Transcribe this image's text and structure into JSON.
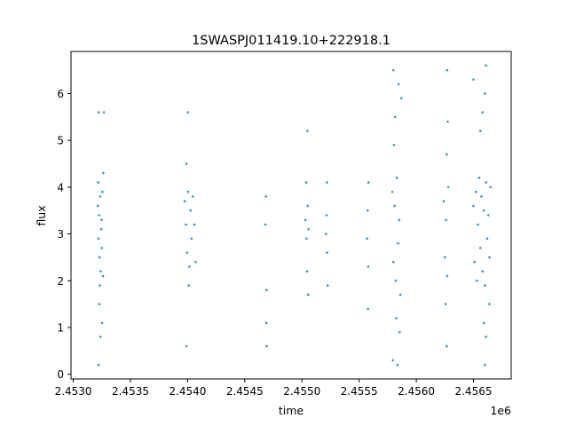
{
  "chart_data": {
    "type": "scatter",
    "title": "1SWASPJ011419.10+222918.1",
    "xlabel": "time",
    "ylabel": "flux",
    "x_offset_label": "1e6",
    "xlim": [
      2452980,
      2456830
    ],
    "ylim": [
      -0.1,
      6.9
    ],
    "xticks": [
      2453000,
      2453500,
      2454000,
      2454500,
      2455000,
      2455500,
      2456000,
      2456500
    ],
    "xtick_labels": [
      "2.4530",
      "2.4535",
      "2.4540",
      "2.4545",
      "2.4550",
      "2.4555",
      "2.4560",
      "2.4565"
    ],
    "yticks": [
      0,
      1,
      2,
      3,
      4,
      5,
      6
    ],
    "ytick_labels": [
      "0",
      "1",
      "2",
      "3",
      "4",
      "5",
      "6"
    ],
    "grid": false,
    "legend": "none",
    "series": [
      {
        "color": "#1f77b4",
        "points": [
          [
            2453215,
            3.6
          ],
          [
            2453220,
            2.9
          ],
          [
            2453225,
            3.4
          ],
          [
            2453230,
            2.5
          ],
          [
            2453235,
            3.8
          ],
          [
            2453240,
            2.2
          ],
          [
            2453245,
            3.1
          ],
          [
            2453250,
            2.7
          ],
          [
            2453255,
            3.9
          ],
          [
            2453260,
            2.1
          ],
          [
            2453218,
            4.1
          ],
          [
            2453232,
            1.9
          ],
          [
            2453248,
            3.3
          ],
          [
            2453262,
            4.3
          ],
          [
            2453228,
            1.5
          ],
          [
            2453252,
            1.1
          ],
          [
            2453238,
            0.8
          ],
          [
            2453222,
            5.6
          ],
          [
            2453268,
            5.6
          ],
          [
            2453221,
            0.2
          ],
          [
            2453975,
            3.7
          ],
          [
            2453985,
            3.2
          ],
          [
            2453995,
            2.6
          ],
          [
            2454005,
            3.9
          ],
          [
            2454015,
            2.3
          ],
          [
            2454025,
            3.5
          ],
          [
            2454035,
            2.9
          ],
          [
            2454045,
            3.8
          ],
          [
            2453990,
            4.5
          ],
          [
            2454010,
            1.9
          ],
          [
            2453990,
            0.6
          ],
          [
            2454002,
            5.6
          ],
          [
            2454060,
            3.2
          ],
          [
            2454070,
            2.4
          ],
          [
            2454680,
            3.2
          ],
          [
            2454685,
            3.8
          ],
          [
            2454690,
            1.8
          ],
          [
            2454688,
            1.1
          ],
          [
            2454692,
            0.6
          ],
          [
            2455030,
            3.3
          ],
          [
            2455040,
            2.9
          ],
          [
            2455050,
            3.6
          ],
          [
            2455045,
            2.2
          ],
          [
            2455038,
            4.1
          ],
          [
            2455055,
            1.7
          ],
          [
            2455048,
            5.2
          ],
          [
            2455058,
            3.1
          ],
          [
            2455210,
            3.0
          ],
          [
            2455215,
            3.4
          ],
          [
            2455220,
            2.6
          ],
          [
            2455218,
            4.1
          ],
          [
            2455225,
            1.9
          ],
          [
            2455570,
            2.9
          ],
          [
            2455575,
            3.5
          ],
          [
            2455580,
            2.3
          ],
          [
            2455578,
            1.4
          ],
          [
            2455582,
            4.1
          ],
          [
            2455790,
            3.9
          ],
          [
            2455800,
            2.4
          ],
          [
            2455810,
            3.6
          ],
          [
            2455820,
            2.0
          ],
          [
            2455830,
            4.2
          ],
          [
            2455840,
            2.8
          ],
          [
            2455850,
            3.3
          ],
          [
            2455860,
            1.7
          ],
          [
            2455805,
            4.9
          ],
          [
            2455815,
            5.5
          ],
          [
            2455800,
            6.5
          ],
          [
            2455845,
            6.2
          ],
          [
            2455825,
            1.2
          ],
          [
            2455855,
            0.9
          ],
          [
            2455795,
            0.3
          ],
          [
            2455835,
            0.2
          ],
          [
            2455870,
            5.9
          ],
          [
            2456240,
            3.7
          ],
          [
            2456250,
            2.5
          ],
          [
            2456260,
            3.3
          ],
          [
            2456270,
            2.1
          ],
          [
            2456280,
            4.0
          ],
          [
            2456265,
            4.7
          ],
          [
            2456275,
            5.4
          ],
          [
            2456270,
            6.5
          ],
          [
            2456255,
            1.5
          ],
          [
            2456265,
            0.6
          ],
          [
            2456500,
            3.6
          ],
          [
            2456510,
            2.4
          ],
          [
            2456520,
            3.9
          ],
          [
            2456530,
            2.0
          ],
          [
            2456540,
            3.2
          ],
          [
            2456550,
            4.2
          ],
          [
            2456560,
            2.7
          ],
          [
            2456570,
            3.8
          ],
          [
            2456580,
            2.2
          ],
          [
            2456590,
            3.5
          ],
          [
            2456600,
            1.9
          ],
          [
            2456610,
            4.1
          ],
          [
            2456620,
            2.9
          ],
          [
            2456630,
            3.4
          ],
          [
            2456640,
            2.5
          ],
          [
            2456650,
            4.0
          ],
          [
            2456560,
            5.2
          ],
          [
            2456580,
            5.6
          ],
          [
            2456600,
            6.0
          ],
          [
            2456610,
            6.6
          ],
          [
            2456500,
            6.3
          ],
          [
            2456590,
            1.1
          ],
          [
            2456610,
            0.8
          ],
          [
            2456600,
            0.2
          ],
          [
            2456640,
            1.5
          ]
        ]
      }
    ]
  }
}
